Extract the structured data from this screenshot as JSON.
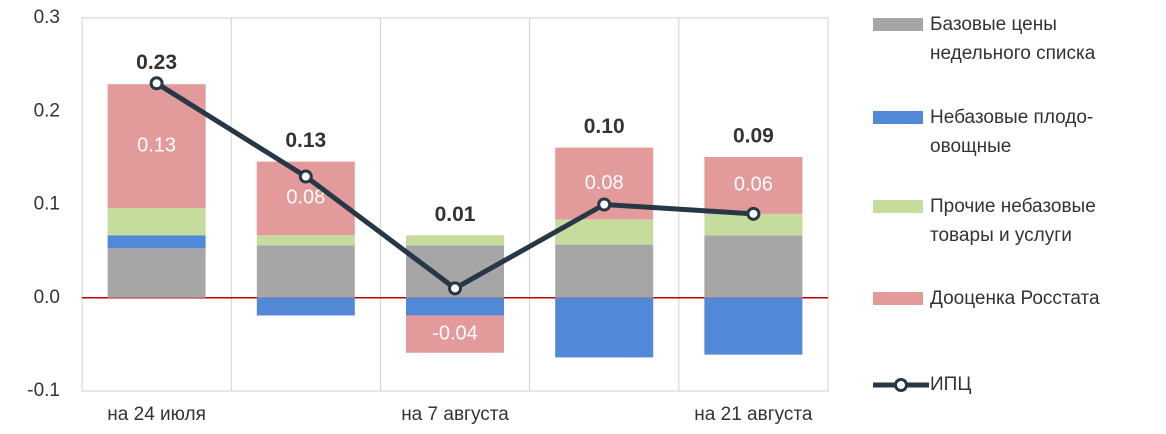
{
  "chart_data": {
    "type": "bar",
    "stacked": true,
    "categories": [
      "на 24 июля",
      null,
      "на 7 августа",
      null,
      "на 21 августа"
    ],
    "series": [
      {
        "name": "Базовые цены недельного списка",
        "color": "#a6a6a6",
        "values": [
          0.053,
          0.056,
          0.056,
          0.057,
          0.067
        ]
      },
      {
        "name": "Небазовые плодо-овощные",
        "color": "#5189d6",
        "values": [
          0.014,
          -0.019,
          -0.019,
          -0.064,
          -0.061
        ]
      },
      {
        "name": "Прочие небазовые товары и услуги",
        "color": "#c6dc9c",
        "values": [
          0.029,
          0.011,
          0.011,
          0.027,
          0.023
        ]
      },
      {
        "name": "Дооценка Росстата",
        "color": "#e29a9a",
        "values": [
          0.133,
          0.079,
          -0.04,
          0.077,
          0.061
        ],
        "value_labels": [
          "0.13",
          "0.08",
          "-0.04",
          "0.08",
          "0.06"
        ]
      }
    ],
    "line": {
      "name": "ИПЦ",
      "color": "#263845",
      "values": [
        0.23,
        0.13,
        0.01,
        0.1,
        0.09
      ],
      "value_labels": [
        "0.23",
        "0.13",
        "0.01",
        "0.10",
        "0.09"
      ]
    },
    "ylim": [
      -0.1,
      0.3
    ],
    "yticks": [
      -0.1,
      {
        "value": 0,
        "label": "0.0"
      },
      0.1,
      0.2,
      0.3
    ],
    "zero_line_color": "#c00000"
  }
}
